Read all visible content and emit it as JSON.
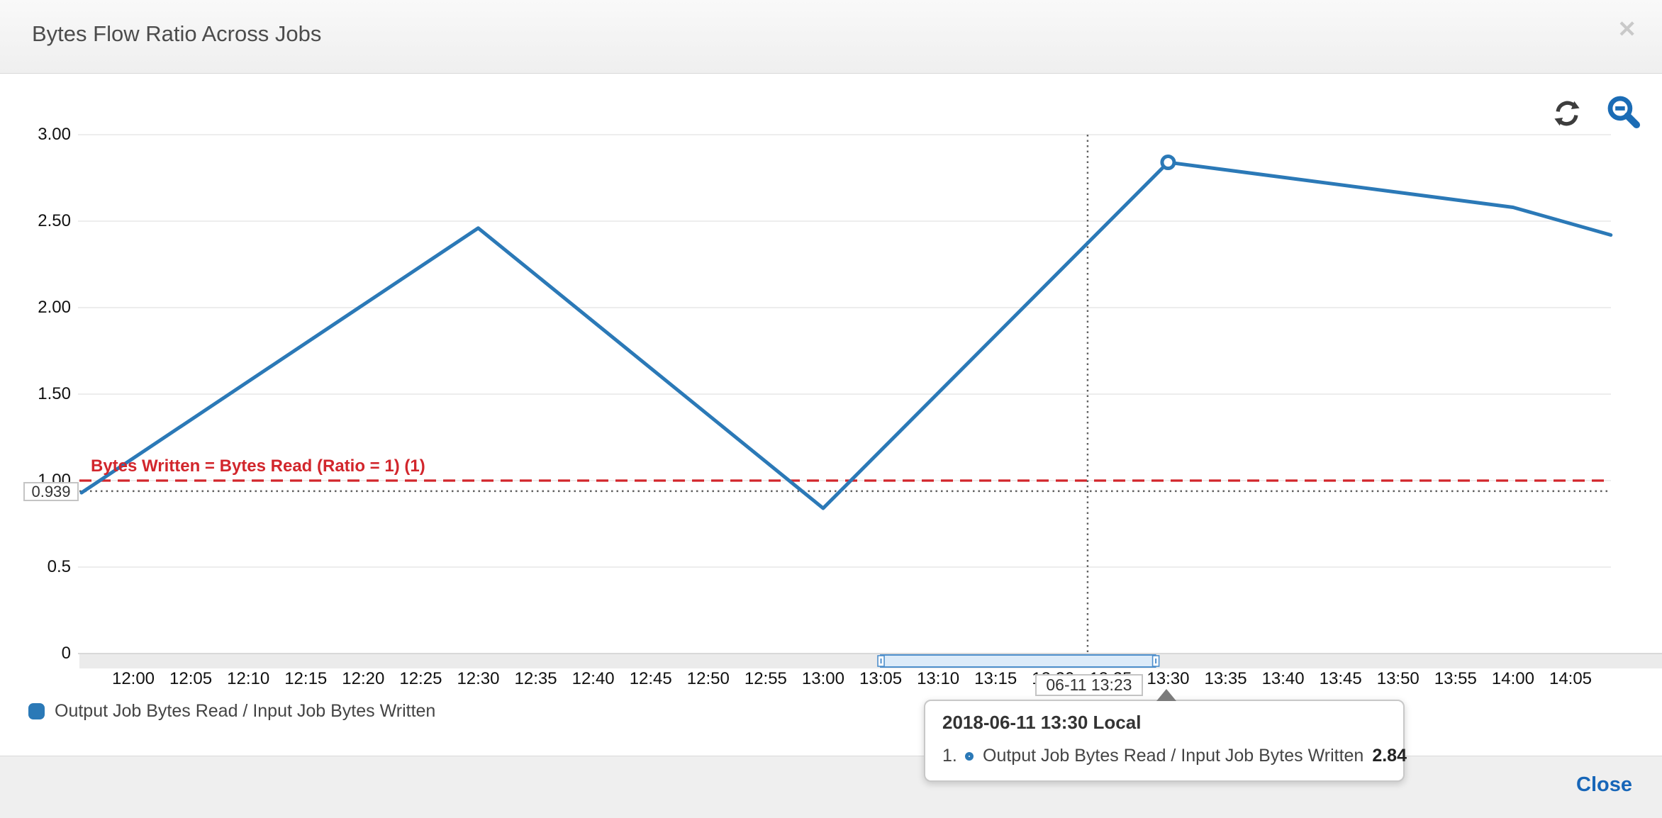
{
  "header": {
    "title": "Bytes Flow Ratio Across Jobs"
  },
  "icons": {
    "close": "✕",
    "refresh": "refresh",
    "zoom_out": "zoom-out-magnifier"
  },
  "chart_data": {
    "type": "line",
    "title": "Bytes Flow Ratio Across Jobs",
    "grid": "horizontal",
    "legend_position": "bottom-left",
    "y_axis": {
      "range": [
        0,
        3
      ],
      "tick_values": [
        3,
        2.5,
        2,
        1.5,
        1,
        0.5,
        0
      ],
      "tick_labels": [
        "3.00",
        "2.50",
        "2.00",
        "1.50",
        "1.00",
        "0.5",
        "0"
      ]
    },
    "x_axis": {
      "tick_start_min": 0,
      "tick_step_min": 5,
      "tick_labels": [
        "12:00",
        "12:05",
        "12:10",
        "12:15",
        "12:20",
        "12:25",
        "12:30",
        "12:35",
        "12:40",
        "12:45",
        "12:50",
        "12:55",
        "13:00",
        "13:05",
        "13:10",
        "13:15",
        "13:20",
        "13:25",
        "13:30",
        "13:35",
        "13:40",
        "13:45",
        "13:50",
        "13:55",
        "14:00",
        "14:05"
      ],
      "visible_range_min": [
        -4.5,
        128.5
      ]
    },
    "series": [
      {
        "name": "Output Job Bytes Read / Input Job Bytes Written",
        "color": "#2b79b7",
        "points": [
          {
            "min": -4.5,
            "time": "~11:55",
            "value": 0.93
          },
          {
            "min": 30,
            "time": "12:30",
            "value": 2.46
          },
          {
            "min": 60,
            "time": "13:00",
            "value": 0.84
          },
          {
            "min": 90,
            "time": "13:30",
            "value": 2.84
          },
          {
            "min": 120,
            "time": "14:00",
            "value": 2.58
          },
          {
            "min": 128.5,
            "time": "~14:08",
            "value": 2.42
          }
        ]
      }
    ],
    "highlight_point": {
      "x_min": 90,
      "time": "13:30",
      "value": 2.84
    },
    "annotation": {
      "label": "Bytes Written = Bytes Read (Ratio = 1) (1)",
      "value": 1,
      "color": "#d2262c"
    },
    "crosshair": {
      "x_min": 83,
      "x_label": "06-11 13:23",
      "y_value": 0.939,
      "y_label": "0.939"
    },
    "time_selector": {
      "start_min": 65,
      "end_min": 88.9,
      "start_time": "13:05",
      "end_time": "13:29"
    }
  },
  "legend": {
    "items": [
      {
        "label": "Output Job Bytes Read / Input Job Bytes Written",
        "color": "#2b79b7"
      }
    ]
  },
  "tooltip": {
    "title": "2018-06-11 13:30 Local",
    "rows": [
      {
        "index": "1.",
        "label": "Output Job Bytes Read / Input Job Bytes Written",
        "value": "2.84"
      }
    ]
  },
  "footer": {
    "close_label": "Close"
  }
}
